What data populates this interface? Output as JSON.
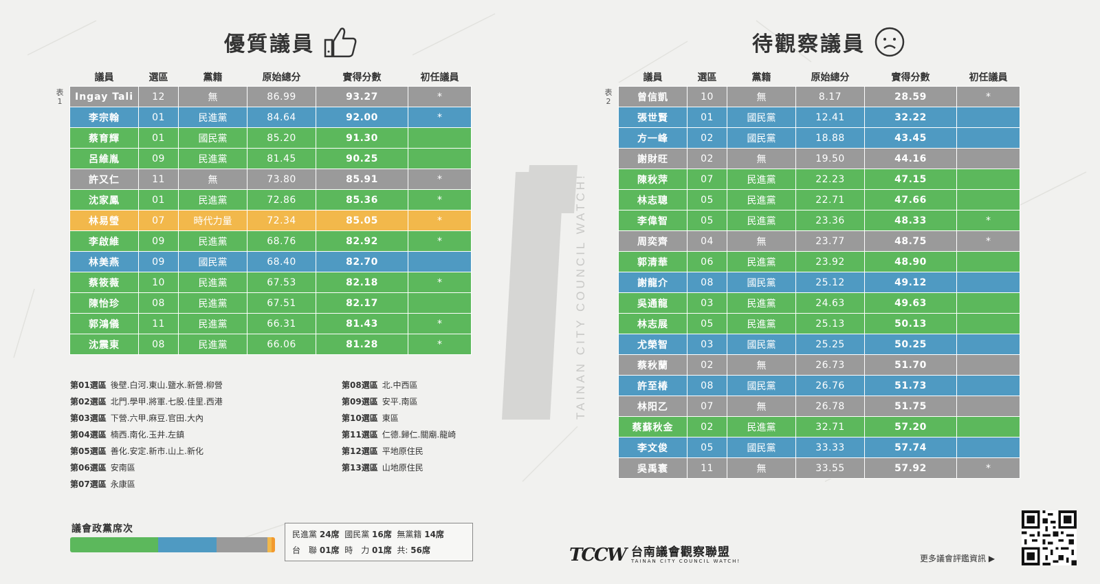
{
  "left": {
    "title": "優質議員",
    "table_label": "表\n1",
    "headers": [
      "議員",
      "選區",
      "黨籍",
      "原始總分",
      "實得分數",
      "初任議員"
    ],
    "rows": [
      {
        "name": "Ingay Tali",
        "district": "12",
        "party": "無",
        "raw": "86.99",
        "score": "93.27",
        "first": "*",
        "color": "gray"
      },
      {
        "name": "李宗翰",
        "district": "01",
        "party": "民進黨",
        "raw": "84.64",
        "score": "92.00",
        "first": "*",
        "color": "blue"
      },
      {
        "name": "蔡育輝",
        "district": "01",
        "party": "國民黨",
        "raw": "85.20",
        "score": "91.30",
        "first": "",
        "color": "green"
      },
      {
        "name": "呂維胤",
        "district": "09",
        "party": "民進黨",
        "raw": "81.45",
        "score": "90.25",
        "first": "",
        "color": "green"
      },
      {
        "name": "許又仁",
        "district": "11",
        "party": "無",
        "raw": "73.80",
        "score": "85.91",
        "first": "*",
        "color": "gray"
      },
      {
        "name": "沈家鳳",
        "district": "01",
        "party": "民進黨",
        "raw": "72.86",
        "score": "85.36",
        "first": "*",
        "color": "green"
      },
      {
        "name": "林易瑩",
        "district": "07",
        "party": "時代力量",
        "raw": "72.34",
        "score": "85.05",
        "first": "*",
        "color": "orange"
      },
      {
        "name": "李啟維",
        "district": "09",
        "party": "民進黨",
        "raw": "68.76",
        "score": "82.92",
        "first": "*",
        "color": "green"
      },
      {
        "name": "林美燕",
        "district": "09",
        "party": "國民黨",
        "raw": "68.40",
        "score": "82.70",
        "first": "",
        "color": "blue"
      },
      {
        "name": "蔡筱薇",
        "district": "10",
        "party": "民進黨",
        "raw": "67.53",
        "score": "82.18",
        "first": "*",
        "color": "green"
      },
      {
        "name": "陳怡珍",
        "district": "08",
        "party": "民進黨",
        "raw": "67.51",
        "score": "82.17",
        "first": "",
        "color": "green"
      },
      {
        "name": "郭鴻儀",
        "district": "11",
        "party": "民進黨",
        "raw": "66.31",
        "score": "81.43",
        "first": "*",
        "color": "green"
      },
      {
        "name": "沈震東",
        "district": "08",
        "party": "民進黨",
        "raw": "66.06",
        "score": "81.28",
        "first": "*",
        "color": "green"
      }
    ]
  },
  "right": {
    "title": "待觀察議員",
    "table_label": "表\n2",
    "headers": [
      "議員",
      "選區",
      "黨籍",
      "原始總分",
      "實得分數",
      "初任議員"
    ],
    "rows": [
      {
        "name": "曾信凱",
        "district": "10",
        "party": "無",
        "raw": "8.17",
        "score": "28.59",
        "first": "*",
        "color": "gray"
      },
      {
        "name": "張世賢",
        "district": "01",
        "party": "國民黨",
        "raw": "12.41",
        "score": "32.22",
        "first": "",
        "color": "blue"
      },
      {
        "name": "方一峰",
        "district": "02",
        "party": "國民黨",
        "raw": "18.88",
        "score": "43.45",
        "first": "",
        "color": "blue"
      },
      {
        "name": "謝財旺",
        "district": "02",
        "party": "無",
        "raw": "19.50",
        "score": "44.16",
        "first": "",
        "color": "gray"
      },
      {
        "name": "陳秋萍",
        "district": "07",
        "party": "民進黨",
        "raw": "22.23",
        "score": "47.15",
        "first": "",
        "color": "green"
      },
      {
        "name": "林志聰",
        "district": "05",
        "party": "民進黨",
        "raw": "22.71",
        "score": "47.66",
        "first": "",
        "color": "green"
      },
      {
        "name": "李偉智",
        "district": "05",
        "party": "民進黨",
        "raw": "23.36",
        "score": "48.33",
        "first": "*",
        "color": "green"
      },
      {
        "name": "周奕齊",
        "district": "04",
        "party": "無",
        "raw": "23.77",
        "score": "48.75",
        "first": "*",
        "color": "gray"
      },
      {
        "name": "郭清華",
        "district": "06",
        "party": "民進黨",
        "raw": "23.92",
        "score": "48.90",
        "first": "",
        "color": "green"
      },
      {
        "name": "謝龍介",
        "district": "08",
        "party": "國民黨",
        "raw": "25.12",
        "score": "49.12",
        "first": "",
        "color": "blue"
      },
      {
        "name": "吳通龍",
        "district": "03",
        "party": "民進黨",
        "raw": "24.63",
        "score": "49.63",
        "first": "",
        "color": "green"
      },
      {
        "name": "林志展",
        "district": "05",
        "party": "民進黨",
        "raw": "25.13",
        "score": "50.13",
        "first": "",
        "color": "green"
      },
      {
        "name": "尤榮智",
        "district": "03",
        "party": "國民黨",
        "raw": "25.25",
        "score": "50.25",
        "first": "",
        "color": "blue"
      },
      {
        "name": "蔡秋蘭",
        "district": "02",
        "party": "無",
        "raw": "26.73",
        "score": "51.70",
        "first": "",
        "color": "gray"
      },
      {
        "name": "許至椿",
        "district": "08",
        "party": "國民黨",
        "raw": "26.76",
        "score": "51.73",
        "first": "",
        "color": "blue"
      },
      {
        "name": "林阳乙",
        "district": "07",
        "party": "無",
        "raw": "26.78",
        "score": "51.75",
        "first": "",
        "color": "gray"
      },
      {
        "name": "蔡蘇秋金",
        "district": "02",
        "party": "民進黨",
        "raw": "32.71",
        "score": "57.20",
        "first": "",
        "color": "green"
      },
      {
        "name": "李文俊",
        "district": "05",
        "party": "國民黨",
        "raw": "33.33",
        "score": "57.74",
        "first": "",
        "color": "blue"
      },
      {
        "name": "吳禹寰",
        "district": "11",
        "party": "無",
        "raw": "33.55",
        "score": "57.92",
        "first": "*",
        "color": "gray"
      }
    ]
  },
  "districts_left": [
    {
      "d": "第01選區",
      "areas": "後壁.白河.東山.鹽水.新營.柳營"
    },
    {
      "d": "第02選區",
      "areas": "北門.學甲.將軍.七股.佳里.西港"
    },
    {
      "d": "第03選區",
      "areas": "下營.六甲.麻豆.官田.大內"
    },
    {
      "d": "第04選區",
      "areas": "楠西.南化.玉井.左鎮"
    },
    {
      "d": "第05選區",
      "areas": "善化.安定.新市.山上.新化"
    },
    {
      "d": "第06選區",
      "areas": "安南區"
    },
    {
      "d": "第07選區",
      "areas": "永康區"
    }
  ],
  "districts_right": [
    {
      "d": "第08選區",
      "areas": "北.中西區"
    },
    {
      "d": "第09選區",
      "areas": "安平.南區"
    },
    {
      "d": "第10選區",
      "areas": "東區"
    },
    {
      "d": "第11選區",
      "areas": "仁德.歸仁.關廟.龍崎"
    },
    {
      "d": "第12選區",
      "areas": "平地原住民"
    },
    {
      "d": "第13選區",
      "areas": "山地原住民"
    }
  ],
  "seats": {
    "title": "議會政黨席次",
    "segments": [
      {
        "party": "民進黨",
        "seats": 24,
        "color": "#5cb85c"
      },
      {
        "party": "國民黨",
        "seats": 16,
        "color": "#4f9ac2"
      },
      {
        "party": "無黨籍",
        "seats": 14,
        "color": "#9a9a9a"
      },
      {
        "party": "台聯",
        "seats": 1,
        "color": "#f2b84b"
      },
      {
        "party": "時力",
        "seats": 1,
        "color": "#f29a2e"
      }
    ],
    "legend_line1": {
      "a": "民進黨",
      "av": "24席",
      "b": "國民黨",
      "bv": "16席",
      "c": "無黨籍",
      "cv": "14席"
    },
    "legend_line2": {
      "a": "台　聯",
      "av": "01席",
      "b": "時　力",
      "bv": "01席",
      "c": "共:",
      "cv": "56席"
    }
  },
  "colors": {
    "green": "#5cb85c",
    "blue": "#4f9ac2",
    "gray": "#9a9a9a",
    "orange": "#f2b84b"
  },
  "footer": {
    "brand": "TCCW",
    "org_cn": "台南議會觀察聯盟",
    "org_en": "TAINAN CITY COUNCIL WATCH!",
    "more": "更多議會評鑑資訊 ▶"
  },
  "watermark": {
    "brand": "TCCW",
    "text": "TAINAN CITY COUNCIL WATCH!"
  },
  "icons": {
    "left_title": "thumbs-up-icon",
    "right_title": "sad-face-icon",
    "qr": "qr-code-icon"
  }
}
